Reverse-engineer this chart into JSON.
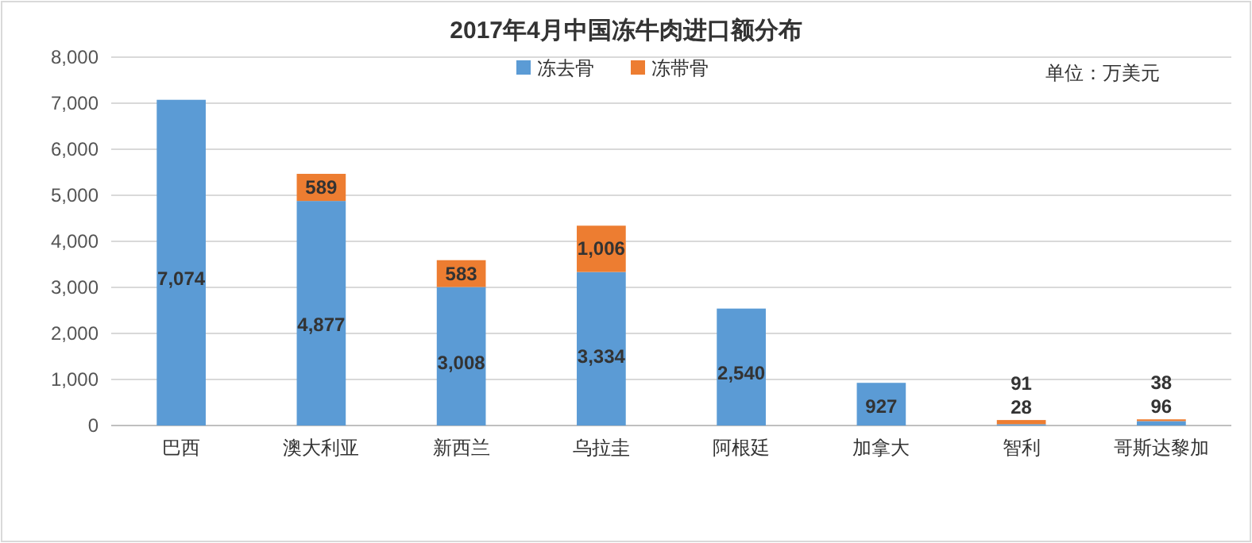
{
  "chart_data": {
    "type": "bar",
    "stacked": true,
    "title": "2017年4月中国冻牛肉进口额分布",
    "annotations": [
      "单位：万美元"
    ],
    "categories": [
      "巴西",
      "澳大利亚",
      "新西兰",
      "乌拉圭",
      "阿根廷",
      "加拿大",
      "智利",
      "哥斯达黎加"
    ],
    "series": [
      {
        "name": "冻去骨",
        "color": "#5b9bd5",
        "values": [
          7074,
          4877,
          3008,
          3334,
          2540,
          927,
          28,
          96
        ],
        "value_labels": [
          "7,074",
          "4,877",
          "3,008",
          "3,334",
          "2,540",
          "927",
          "28",
          "96"
        ]
      },
      {
        "name": "冻带骨",
        "color": "#ed7d31",
        "values": [
          null,
          589,
          583,
          1006,
          null,
          null,
          91,
          38
        ],
        "value_labels": [
          null,
          "589",
          "583",
          "1,006",
          null,
          null,
          "91",
          "38"
        ]
      }
    ],
    "ylim": [
      0,
      8000
    ],
    "yticks": [
      0,
      {
        "value": 1000,
        "label": "1,000"
      },
      {
        "value": 2000,
        "label": "2,000"
      },
      {
        "value": 3000,
        "label": "3,000"
      },
      {
        "value": 4000,
        "label": "4,000"
      },
      {
        "value": 5000,
        "label": "5,000"
      },
      {
        "value": 6000,
        "label": "6,000"
      },
      {
        "value": 7000,
        "label": "7,000"
      },
      {
        "value": 8000,
        "label": "8,000"
      }
    ],
    "grid": "y",
    "legend": "top"
  }
}
